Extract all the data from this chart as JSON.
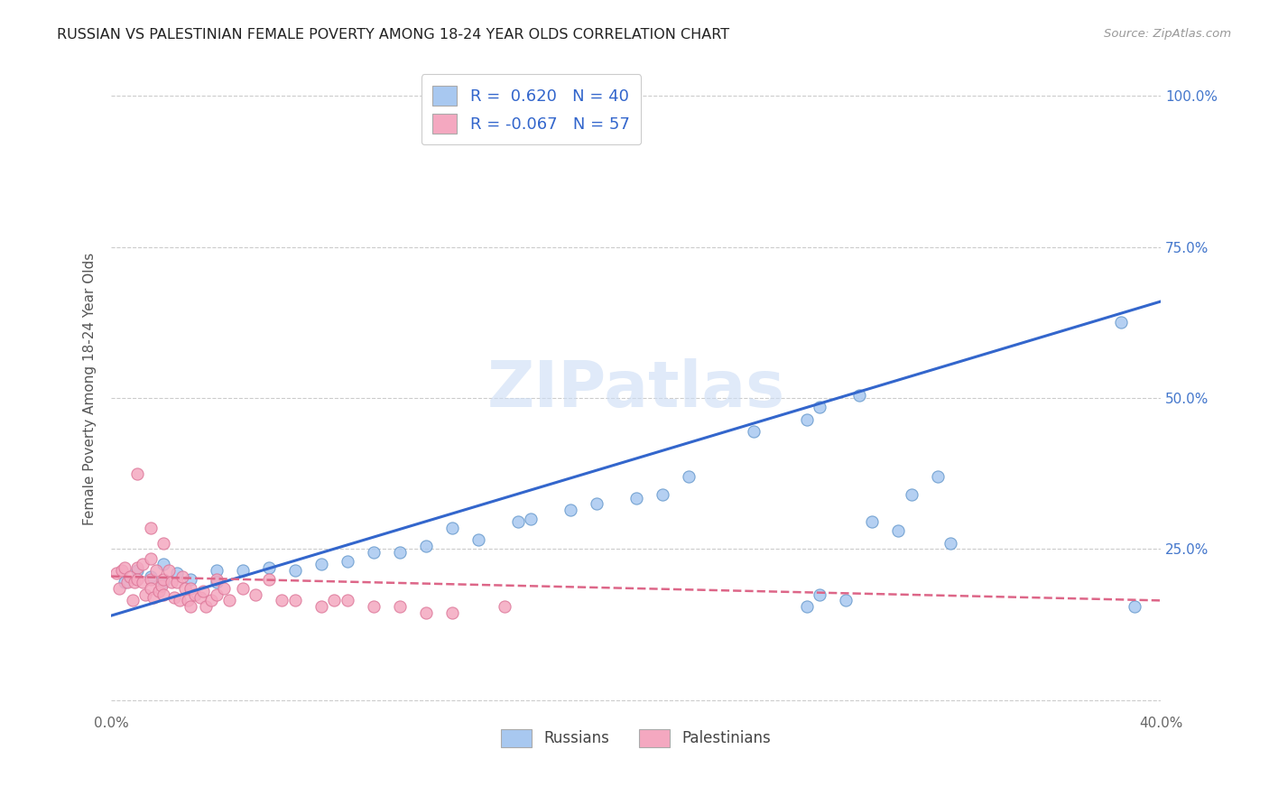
{
  "title": "RUSSIAN VS PALESTINIAN FEMALE POVERTY AMONG 18-24 YEAR OLDS CORRELATION CHART",
  "source": "Source: ZipAtlas.com",
  "ylabel": "Female Poverty Among 18-24 Year Olds",
  "xlim": [
    0.0,
    0.4
  ],
  "ylim": [
    -0.02,
    1.05
  ],
  "russian_color": "#a8c8f0",
  "russian_edge_color": "#6699cc",
  "palestinian_color": "#f4a8c0",
  "palestinian_edge_color": "#dd7799",
  "russian_line_color": "#3366cc",
  "palestinian_line_color": "#dd6688",
  "watermark": "ZIPatlas",
  "legend_r_russian": "0.620",
  "legend_n_russian": "40",
  "legend_r_palestinian": "-0.067",
  "legend_n_palestinian": "57",
  "russians_label": "Russians",
  "palestinians_label": "Palestinians",
  "russian_x": [
    0.005,
    0.01,
    0.015,
    0.02,
    0.02,
    0.025,
    0.03,
    0.04,
    0.04,
    0.05,
    0.06,
    0.07,
    0.08,
    0.09,
    0.1,
    0.11,
    0.12,
    0.13,
    0.14,
    0.155,
    0.16,
    0.175,
    0.185,
    0.2,
    0.21,
    0.22,
    0.245,
    0.265,
    0.27,
    0.285,
    0.29,
    0.3,
    0.305,
    0.315,
    0.32,
    0.265,
    0.27,
    0.28,
    0.385,
    0.39
  ],
  "russian_y": [
    0.195,
    0.215,
    0.205,
    0.195,
    0.225,
    0.21,
    0.2,
    0.215,
    0.195,
    0.215,
    0.22,
    0.215,
    0.225,
    0.23,
    0.245,
    0.245,
    0.255,
    0.285,
    0.265,
    0.295,
    0.3,
    0.315,
    0.325,
    0.335,
    0.34,
    0.37,
    0.445,
    0.465,
    0.485,
    0.505,
    0.295,
    0.28,
    0.34,
    0.37,
    0.26,
    0.155,
    0.175,
    0.165,
    0.625,
    0.155
  ],
  "palestinian_x": [
    0.002,
    0.003,
    0.004,
    0.005,
    0.006,
    0.007,
    0.008,
    0.009,
    0.01,
    0.01,
    0.012,
    0.012,
    0.013,
    0.015,
    0.015,
    0.015,
    0.016,
    0.017,
    0.018,
    0.019,
    0.02,
    0.02,
    0.022,
    0.023,
    0.024,
    0.025,
    0.026,
    0.027,
    0.028,
    0.029,
    0.03,
    0.03,
    0.032,
    0.034,
    0.035,
    0.036,
    0.038,
    0.04,
    0.04,
    0.043,
    0.045,
    0.05,
    0.055,
    0.06,
    0.065,
    0.07,
    0.08,
    0.085,
    0.09,
    0.1,
    0.11,
    0.12,
    0.13,
    0.15,
    0.01,
    0.015,
    0.02
  ],
  "palestinian_y": [
    0.21,
    0.185,
    0.215,
    0.22,
    0.195,
    0.205,
    0.165,
    0.195,
    0.22,
    0.2,
    0.225,
    0.195,
    0.175,
    0.235,
    0.2,
    0.185,
    0.17,
    0.215,
    0.18,
    0.19,
    0.2,
    0.175,
    0.215,
    0.195,
    0.17,
    0.195,
    0.165,
    0.205,
    0.185,
    0.165,
    0.155,
    0.185,
    0.175,
    0.17,
    0.18,
    0.155,
    0.165,
    0.2,
    0.175,
    0.185,
    0.165,
    0.185,
    0.175,
    0.2,
    0.165,
    0.165,
    0.155,
    0.165,
    0.165,
    0.155,
    0.155,
    0.145,
    0.145,
    0.155,
    0.375,
    0.285,
    0.26
  ],
  "russian_trend_x": [
    0.0,
    0.4
  ],
  "russian_trend_y": [
    0.14,
    0.66
  ],
  "palestinian_trend_x": [
    0.0,
    0.4
  ],
  "palestinian_trend_y": [
    0.205,
    0.165
  ]
}
